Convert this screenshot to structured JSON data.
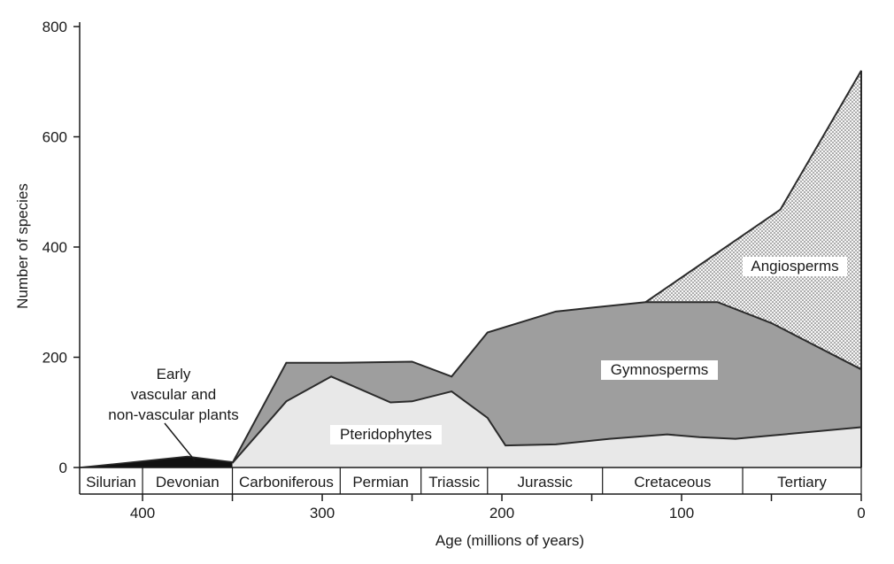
{
  "chart_data": {
    "type": "area",
    "title": "",
    "xlabel": "Age (millions of years)",
    "ylabel": "Number of species",
    "xlim": [
      435,
      0
    ],
    "ylim": [
      0,
      800
    ],
    "x_ticks": [
      400,
      300,
      200,
      100,
      0
    ],
    "y_ticks": [
      0,
      200,
      400,
      600,
      800
    ],
    "colors": {
      "early_plants": "#111111",
      "pteridophytes": "#e8e8e8",
      "gymnosperms": "#9e9e9e",
      "angiosperms": "#f6f6f6",
      "angiosperm_dots": "#555555",
      "outline": "#2b2b2b"
    },
    "series": [
      {
        "name": "Early vascular and non-vascular plants",
        "label_lines": [
          "Early",
          "vascular and",
          "non-vascular plants"
        ],
        "points": [
          [
            435,
            0
          ],
          [
            375,
            20
          ],
          [
            350,
            10
          ]
        ]
      },
      {
        "name": "Pteridophytes",
        "label_lines": [
          "Pteridophytes"
        ],
        "points": [
          [
            350,
            8
          ],
          [
            320,
            120
          ],
          [
            295,
            165
          ],
          [
            262,
            118
          ],
          [
            250,
            120
          ],
          [
            228,
            138
          ],
          [
            208,
            90
          ],
          [
            198,
            40
          ],
          [
            170,
            42
          ],
          [
            140,
            52
          ],
          [
            108,
            60
          ],
          [
            90,
            55
          ],
          [
            70,
            52
          ],
          [
            50,
            58
          ],
          [
            0,
            73
          ]
        ]
      },
      {
        "name": "Gymnosperms",
        "label_lines": [
          "Gymnosperms"
        ],
        "points": [
          [
            350,
            8
          ],
          [
            320,
            190
          ],
          [
            290,
            190
          ],
          [
            250,
            192
          ],
          [
            228,
            165
          ],
          [
            208,
            245
          ],
          [
            170,
            283
          ],
          [
            150,
            290
          ],
          [
            120,
            300
          ],
          [
            80,
            300
          ],
          [
            50,
            262
          ],
          [
            0,
            178
          ]
        ]
      },
      {
        "name": "Angiosperms",
        "label_lines": [
          "Angiosperms"
        ],
        "points": [
          [
            120,
            300
          ],
          [
            45,
            468
          ],
          [
            0,
            720
          ]
        ]
      }
    ],
    "periods": [
      {
        "name": "Silurian",
        "start": 435,
        "end": 400
      },
      {
        "name": "Devonian",
        "start": 400,
        "end": 350
      },
      {
        "name": "Carboniferous",
        "start": 350,
        "end": 290
      },
      {
        "name": "Permian",
        "start": 290,
        "end": 245
      },
      {
        "name": "Triassic",
        "start": 245,
        "end": 208
      },
      {
        "name": "Jurassic",
        "start": 208,
        "end": 144
      },
      {
        "name": "Cretaceous",
        "start": 144,
        "end": 66
      },
      {
        "name": "Tertiary",
        "start": 66,
        "end": 0
      }
    ]
  }
}
